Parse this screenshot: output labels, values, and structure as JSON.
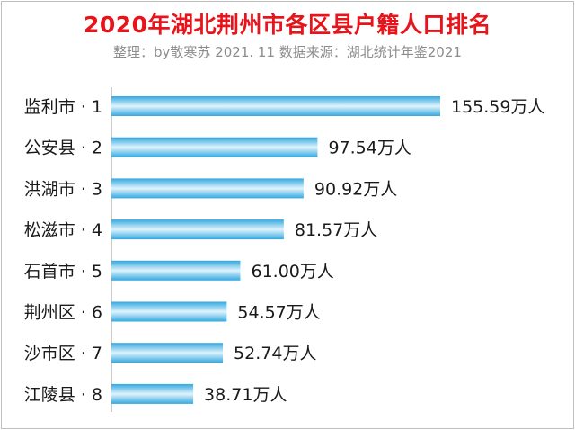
{
  "header": {
    "title": "2020年湖北荆州市各区县户籍人口排名",
    "subtitle": "整理：by散寒苏  2021. 11  数据来源：湖北统计年鉴2021"
  },
  "chart_data": {
    "type": "bar",
    "orientation": "horizontal",
    "categories": [
      "监利市 · 1",
      "公安县 · 2",
      "洪湖市 · 3",
      "松滋市 · 4",
      "石首市 · 5",
      "荆州区 · 6",
      "沙市区 · 7",
      "江陵县 · 8"
    ],
    "values": [
      155.59,
      97.54,
      90.92,
      81.57,
      61.0,
      54.57,
      52.74,
      38.71
    ],
    "data_labels": [
      "155.59万人",
      "97.54万人",
      "90.92万人",
      "81.57万人",
      "61.00万人",
      "54.57万人",
      "52.74万人",
      "38.71万人"
    ],
    "xlim": [
      0,
      155.59
    ],
    "grid": false,
    "legend": "none",
    "colors": {
      "bar_edge": "#33a8e0",
      "bar_core": "#dff3fc",
      "title": "#e8141b"
    }
  }
}
